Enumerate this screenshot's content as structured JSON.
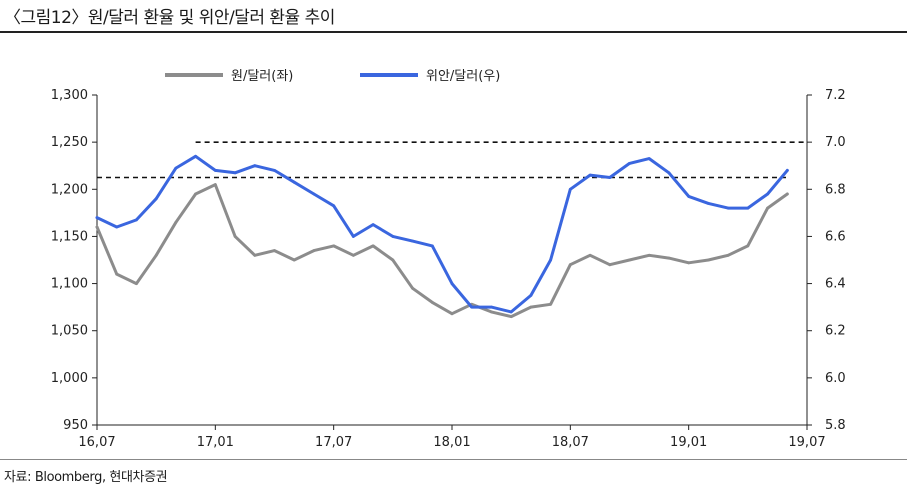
{
  "figure": {
    "title": "〈그림12〉원/달러 환율 및 위안/달러 환율 추이",
    "source": "자료: Bloomberg, 현대차증권"
  },
  "chart_data": {
    "type": "line",
    "title": "",
    "xlabel": "",
    "ylabel": "",
    "y2label": "",
    "x_ticks": [
      "16,07",
      "17,01",
      "17,07",
      "18,01",
      "18,07",
      "19,01",
      "19,07"
    ],
    "x_range": [
      "2016-07",
      "2019-07"
    ],
    "ylim": [
      950,
      1300
    ],
    "yticks": [
      "1,300",
      "1,250",
      "1,200",
      "1,150",
      "1,100",
      "1,050",
      "1,000",
      "950"
    ],
    "y2lim": [
      5.8,
      7.2
    ],
    "y2ticks": [
      "7.2",
      "7.0",
      "6.8",
      "6.6",
      "6.4",
      "6.2",
      "6.0",
      "5.8"
    ],
    "grid": false,
    "legend_position": "top-center",
    "series": [
      {
        "name": "원/달러(좌)",
        "axis": "left",
        "color": "#8c8c8c",
        "x": [
          "2016-07",
          "2016-08",
          "2016-09",
          "2016-10",
          "2016-11",
          "2016-12",
          "2017-01",
          "2017-02",
          "2017-03",
          "2017-04",
          "2017-05",
          "2017-06",
          "2017-07",
          "2017-08",
          "2017-09",
          "2017-10",
          "2017-11",
          "2017-12",
          "2018-01",
          "2018-02",
          "2018-03",
          "2018-04",
          "2018-05",
          "2018-06",
          "2018-07",
          "2018-08",
          "2018-09",
          "2018-10",
          "2018-11",
          "2018-12",
          "2019-01",
          "2019-02",
          "2019-03",
          "2019-04",
          "2019-05",
          "2019-06"
        ],
        "values": [
          1160,
          1110,
          1100,
          1130,
          1165,
          1195,
          1205,
          1150,
          1130,
          1135,
          1125,
          1135,
          1140,
          1130,
          1140,
          1125,
          1095,
          1080,
          1068,
          1078,
          1070,
          1065,
          1075,
          1078,
          1120,
          1130,
          1120,
          1125,
          1130,
          1127,
          1122,
          1125,
          1130,
          1140,
          1180,
          1195
        ]
      },
      {
        "name": "위안/달러(우)",
        "axis": "right",
        "color": "#3a66df",
        "x": [
          "2016-07",
          "2016-08",
          "2016-09",
          "2016-10",
          "2016-11",
          "2016-12",
          "2017-01",
          "2017-02",
          "2017-03",
          "2017-04",
          "2017-05",
          "2017-06",
          "2017-07",
          "2017-08",
          "2017-09",
          "2017-10",
          "2017-11",
          "2017-12",
          "2018-01",
          "2018-02",
          "2018-03",
          "2018-04",
          "2018-05",
          "2018-06",
          "2018-07",
          "2018-08",
          "2018-09",
          "2018-10",
          "2018-11",
          "2018-12",
          "2019-01",
          "2019-02",
          "2019-03",
          "2019-04",
          "2019-05",
          "2019-06"
        ],
        "values": [
          6.68,
          6.64,
          6.67,
          6.76,
          6.89,
          6.94,
          6.88,
          6.87,
          6.9,
          6.88,
          6.83,
          6.78,
          6.73,
          6.6,
          6.65,
          6.6,
          6.58,
          6.56,
          6.4,
          6.3,
          6.3,
          6.28,
          6.35,
          6.5,
          6.8,
          6.86,
          6.85,
          6.91,
          6.93,
          6.87,
          6.77,
          6.74,
          6.72,
          6.72,
          6.78,
          6.88
        ]
      }
    ],
    "reference_lines": [
      {
        "axis": "right",
        "value": 7.0,
        "style": "dashed",
        "from": "2016-12",
        "to": "2019-07"
      },
      {
        "axis": "right",
        "value": 6.85,
        "style": "dashed",
        "from": "2016-07",
        "to": "2019-06"
      }
    ]
  }
}
